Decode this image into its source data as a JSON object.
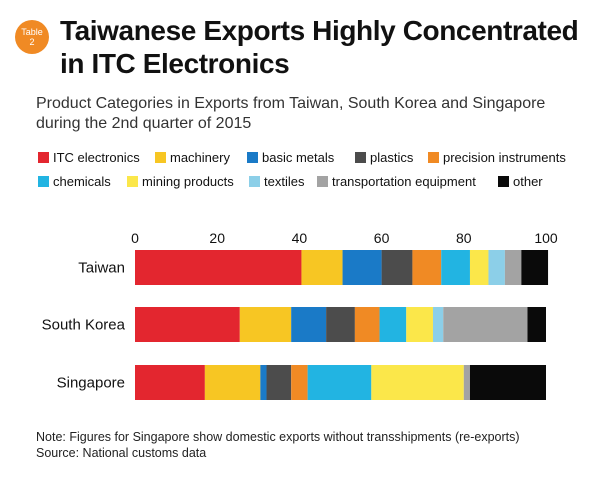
{
  "badge": {
    "line1": "Table",
    "line2": "2"
  },
  "title": "Taiwanese Exports Highly Concentrated in ITC Electronics",
  "subtitle": "Product Categories in Exports from Taiwan, South Korea and Singapore during the 2nd quarter of 2015",
  "note": "Note: Figures for Singapore show domestic exports without transshipments (re-exports)",
  "source": "Source: National customs data",
  "chart_data": {
    "type": "bar",
    "orientation": "horizontal",
    "stacked": true,
    "categories": [
      "Taiwan",
      "South Korea",
      "Singapore"
    ],
    "xlim": [
      0,
      100
    ],
    "x_ticks": [
      "0",
      "20",
      "40",
      "60",
      "80",
      "100"
    ],
    "grid": false,
    "legend_position": "top",
    "series": [
      {
        "name": "ITC electronics",
        "color": "#e3262f",
        "values": [
          40.5,
          25.5,
          17
        ]
      },
      {
        "name": "machinery",
        "color": "#f7c623",
        "values": [
          10,
          12.5,
          13.5
        ]
      },
      {
        "name": "basic metals",
        "color": "#1a7ac7",
        "values": [
          9.5,
          8.5,
          1.5
        ]
      },
      {
        "name": "plastics",
        "color": "#4c4c4c",
        "values": [
          7.5,
          7,
          6
        ]
      },
      {
        "name": "precision instruments",
        "color": "#f08a24",
        "values": [
          7,
          6,
          4
        ]
      },
      {
        "name": "chemicals",
        "color": "#22b4e2",
        "values": [
          7,
          6.5,
          15.5
        ]
      },
      {
        "name": "mining products",
        "color": "#fbe74a",
        "values": [
          4.5,
          6.5,
          22.5
        ]
      },
      {
        "name": "textiles",
        "color": "#8ccfe8",
        "values": [
          4,
          2.5,
          0
        ]
      },
      {
        "name": "transportation equipment",
        "color": "#a3a3a3",
        "values": [
          4,
          20.5,
          1.5
        ]
      },
      {
        "name": "other",
        "color": "#0a0a0a",
        "values": [
          6.5,
          4.5,
          18.5
        ]
      }
    ]
  }
}
